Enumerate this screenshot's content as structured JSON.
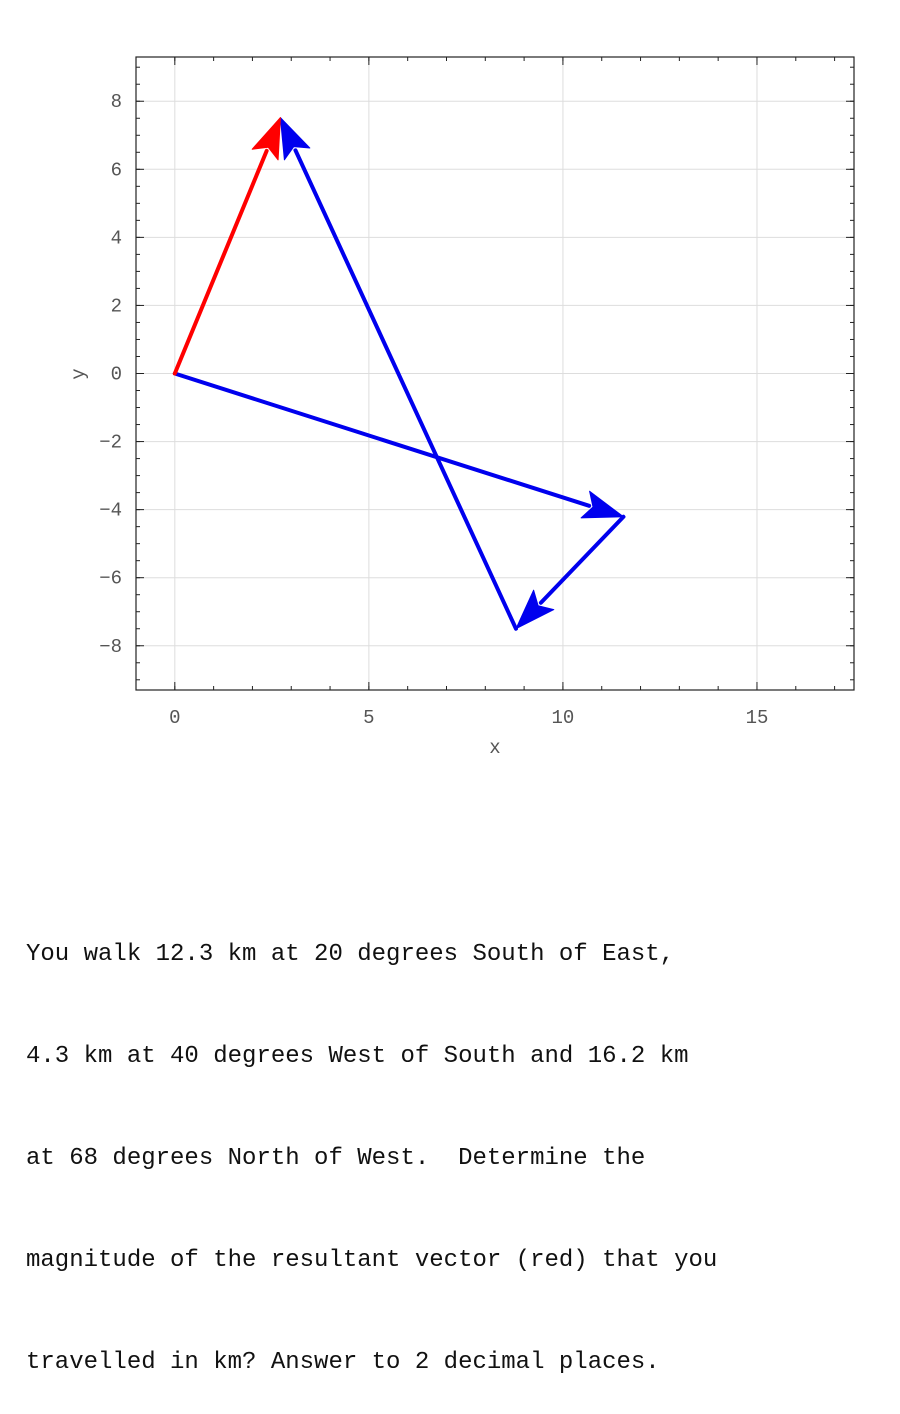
{
  "chart_data": {
    "type": "vector",
    "xlabel": "x",
    "ylabel": "y",
    "xlim": [
      -1,
      17.5
    ],
    "ylim": [
      -9.3,
      9.3
    ],
    "xticks": [
      0,
      5,
      10,
      15
    ],
    "yticks": [
      8,
      6,
      4,
      2,
      0,
      -2,
      -4,
      -6,
      -8
    ],
    "x_tick_labels": [
      "0",
      "5",
      "10",
      "15"
    ],
    "y_tick_labels": [
      "8",
      "6",
      "4",
      "2",
      "0",
      "−2",
      "−4",
      "−6",
      "−8"
    ],
    "grid": true,
    "vectors": [
      {
        "from": [
          0,
          0
        ],
        "to": [
          11.56,
          -4.21
        ],
        "color": "#0000ee"
      },
      {
        "from": [
          11.56,
          -4.21
        ],
        "to": [
          8.79,
          -7.5
        ],
        "color": "#0000ee"
      },
      {
        "from": [
          8.79,
          -7.5
        ],
        "to": [
          2.72,
          7.52
        ],
        "color": "#0000ee"
      },
      {
        "from": [
          0,
          0
        ],
        "to": [
          2.72,
          7.52
        ],
        "color": "#ff0000"
      }
    ]
  },
  "question": {
    "lines": [
      "You walk 12.3 km at 20 degrees South of East,",
      "4.3 km at 40 degrees West of South and 16.2 km",
      "at 68 degrees North of West.  Determine the",
      "magnitude of the resultant vector (red) that you",
      "travelled in km? Answer to 2 decimal places."
    ]
  }
}
